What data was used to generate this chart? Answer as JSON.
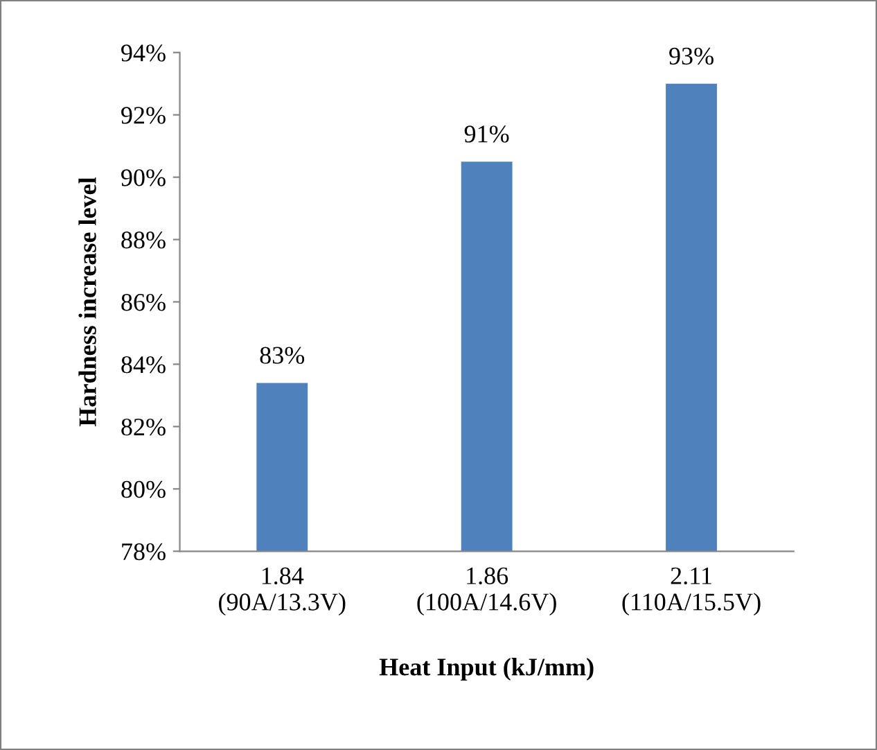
{
  "chart_data": {
    "type": "bar",
    "xlabel": "Heat Input (kJ/mm)",
    "ylabel": "Hardness increase level",
    "categories": [
      "1.84\n(90A/13.3V)",
      "1.86\n(100A/14.6V)",
      "2.11\n(110A/15.5V)"
    ],
    "values": [
      83.4,
      90.5,
      93.0
    ],
    "color": "#4f81bd",
    "value_labels": [
      "83%",
      "91%",
      "93%"
    ],
    "ylim": [
      78,
      94
    ],
    "yticks": [
      {
        "value": 78,
        "label": "78%"
      },
      {
        "value": 80,
        "label": "80%"
      },
      {
        "value": 82,
        "label": "82%"
      },
      {
        "value": 84,
        "label": "84%"
      },
      {
        "value": 86,
        "label": "86%"
      },
      {
        "value": 88,
        "label": "88%"
      },
      {
        "value": 90,
        "label": "90%"
      },
      {
        "value": 92,
        "label": "92%"
      },
      {
        "value": 94,
        "label": "94%"
      }
    ],
    "grid": false,
    "legend": false
  }
}
